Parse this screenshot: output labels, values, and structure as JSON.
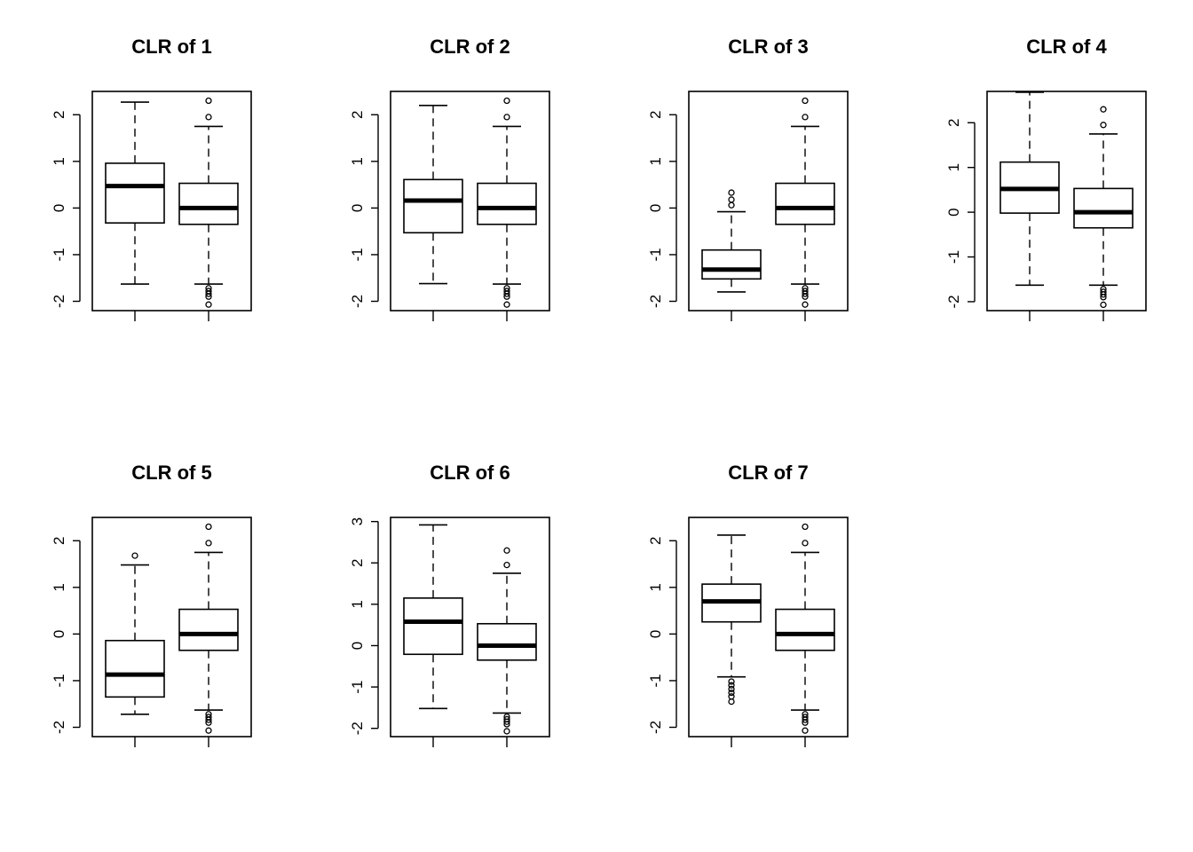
{
  "chart_data": [
    {
      "type": "box",
      "title": "CLR of 1",
      "ylim": [
        -2.2,
        2.5
      ],
      "yticks": [
        2,
        1,
        0,
        -1,
        -2
      ],
      "boxes": [
        {
          "whisker_low": -1.63,
          "q1": -0.32,
          "median": 0.47,
          "q3": 0.96,
          "whisker_high": 2.27,
          "outliers": []
        },
        {
          "whisker_low": -1.63,
          "q1": -0.35,
          "median": 0.0,
          "q3": 0.53,
          "whisker_high": 1.75,
          "outliers": [
            2.3,
            1.95,
            -1.72,
            -1.78,
            -1.84,
            -1.9,
            -2.07
          ]
        }
      ]
    },
    {
      "type": "box",
      "title": "CLR of 2",
      "ylim": [
        -2.2,
        2.5
      ],
      "yticks": [
        2,
        1,
        0,
        -1,
        -2
      ],
      "boxes": [
        {
          "whisker_low": -1.62,
          "q1": -0.53,
          "median": 0.16,
          "q3": 0.61,
          "whisker_high": 2.2,
          "outliers": []
        },
        {
          "whisker_low": -1.63,
          "q1": -0.35,
          "median": 0.0,
          "q3": 0.53,
          "whisker_high": 1.75,
          "outliers": [
            2.3,
            1.95,
            -1.72,
            -1.78,
            -1.84,
            -1.9,
            -2.07
          ]
        }
      ]
    },
    {
      "type": "box",
      "title": "CLR of 3",
      "ylim": [
        -2.2,
        2.5
      ],
      "yticks": [
        2,
        1,
        0,
        -1,
        -2
      ],
      "boxes": [
        {
          "whisker_low": -1.8,
          "q1": -1.52,
          "median": -1.32,
          "q3": -0.9,
          "whisker_high": -0.08,
          "outliers": [
            0.33,
            0.18,
            0.06
          ]
        },
        {
          "whisker_low": -1.63,
          "q1": -0.35,
          "median": 0.0,
          "q3": 0.53,
          "whisker_high": 1.75,
          "outliers": [
            2.3,
            1.95,
            -1.72,
            -1.78,
            -1.84,
            -1.9,
            -2.07
          ]
        }
      ]
    },
    {
      "type": "box",
      "title": "CLR of 4",
      "ylim": [
        -2.2,
        2.7
      ],
      "yticks": [
        2,
        1,
        0,
        -1,
        -2
      ],
      "boxes": [
        {
          "whisker_low": -1.63,
          "q1": -0.02,
          "median": 0.52,
          "q3": 1.12,
          "whisker_high": 2.68,
          "outliers": []
        },
        {
          "whisker_low": -1.63,
          "q1": -0.35,
          "median": 0.0,
          "q3": 0.53,
          "whisker_high": 1.75,
          "outliers": [
            2.3,
            1.95,
            -1.72,
            -1.78,
            -1.84,
            -1.9,
            -2.07
          ]
        }
      ]
    },
    {
      "type": "box",
      "title": "CLR of 5",
      "ylim": [
        -2.2,
        2.5
      ],
      "yticks": [
        2,
        1,
        0,
        -1,
        -2
      ],
      "boxes": [
        {
          "whisker_low": -1.72,
          "q1": -1.35,
          "median": -0.87,
          "q3": -0.14,
          "whisker_high": 1.48,
          "outliers": [
            1.68
          ]
        },
        {
          "whisker_low": -1.63,
          "q1": -0.35,
          "median": 0.0,
          "q3": 0.53,
          "whisker_high": 1.75,
          "outliers": [
            2.3,
            1.95,
            -1.72,
            -1.78,
            -1.84,
            -1.9,
            -2.07
          ]
        }
      ]
    },
    {
      "type": "box",
      "title": "CLR of 6",
      "ylim": [
        -2.2,
        3.1
      ],
      "yticks": [
        3,
        2,
        1,
        0,
        -1,
        -2
      ],
      "boxes": [
        {
          "whisker_low": -1.52,
          "q1": -0.21,
          "median": 0.58,
          "q3": 1.15,
          "whisker_high": 2.92,
          "outliers": []
        },
        {
          "whisker_low": -1.63,
          "q1": -0.35,
          "median": 0.0,
          "q3": 0.53,
          "whisker_high": 1.75,
          "outliers": [
            2.3,
            1.95,
            -1.72,
            -1.78,
            -1.84,
            -1.9,
            -2.07
          ]
        }
      ]
    },
    {
      "type": "box",
      "title": "CLR of 7",
      "ylim": [
        -2.2,
        2.5
      ],
      "yticks": [
        2,
        1,
        0,
        -1,
        -2
      ],
      "boxes": [
        {
          "whisker_low": -0.92,
          "q1": 0.26,
          "median": 0.7,
          "q3": 1.07,
          "whisker_high": 2.12,
          "outliers": [
            -1.02,
            -1.1,
            -1.18,
            -1.26,
            -1.34,
            -1.45
          ]
        },
        {
          "whisker_low": -1.63,
          "q1": -0.35,
          "median": 0.0,
          "q3": 0.53,
          "whisker_high": 1.75,
          "outliers": [
            2.3,
            1.95,
            -1.72,
            -1.78,
            -1.84,
            -1.9,
            -2.07
          ]
        }
      ]
    }
  ]
}
